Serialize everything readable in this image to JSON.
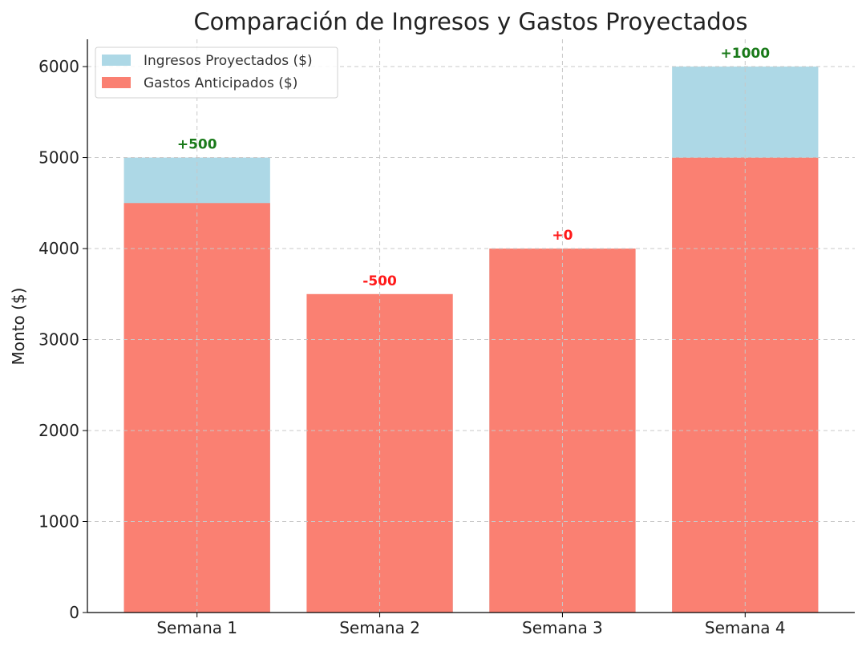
{
  "chart_data": {
    "type": "bar",
    "title": "Comparación de Ingresos y Gastos Proyectados",
    "xlabel": "",
    "ylabel": "Monto ($)",
    "categories": [
      "Semana 1",
      "Semana 2",
      "Semana 3",
      "Semana 4"
    ],
    "series": [
      {
        "name": "Ingresos Proyectados ($)",
        "values": [
          5000,
          3000,
          4000,
          6000
        ],
        "color": "#add8e6"
      },
      {
        "name": "Gastos Anticipados ($)",
        "values": [
          4500,
          3500,
          4000,
          5000
        ],
        "color": "#fa8072"
      }
    ],
    "annotations": [
      "+500",
      "-500",
      "+0",
      "+1000"
    ],
    "annotation_colors": [
      "#1a7a1a",
      "#ff1a1a",
      "#ff1a1a",
      "#1a7a1a"
    ],
    "ylim": [
      0,
      6300
    ],
    "yticks": [
      0,
      1000,
      2000,
      3000,
      4000,
      5000,
      6000
    ],
    "grid": true,
    "legend_position": "top-left"
  }
}
